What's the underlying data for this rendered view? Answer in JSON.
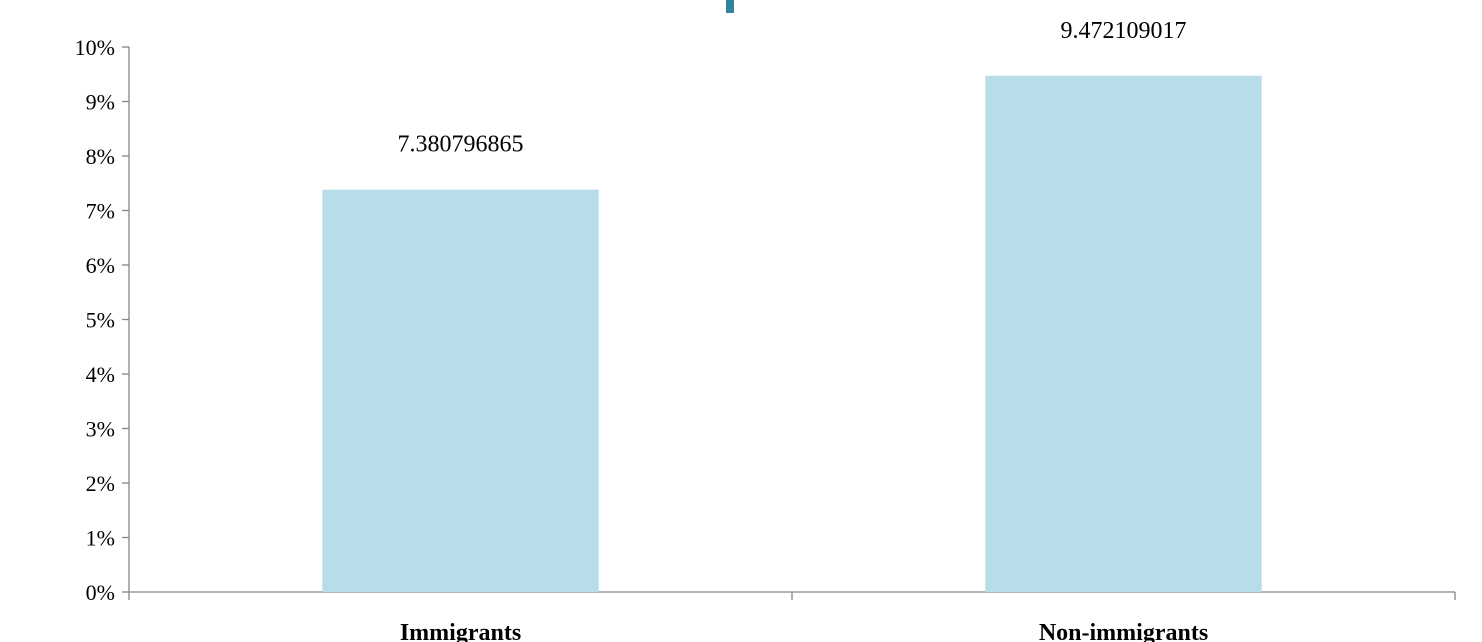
{
  "chart_data": {
    "type": "bar",
    "title": "",
    "xlabel": "",
    "ylabel": "",
    "categories": [
      "Immigrants",
      "Non-immigrants"
    ],
    "values": [
      7.380796865,
      9.472109017
    ],
    "data_labels": [
      "7.380796865",
      "9.472109017"
    ],
    "ylim": [
      0,
      10
    ],
    "yticks": [
      "0%",
      "1%",
      "2%",
      "3%",
      "4%",
      "5%",
      "6%",
      "7%",
      "8%",
      "9%",
      "10%"
    ],
    "grid": false,
    "legend": "none",
    "bar_color": "#b7dde8",
    "axis_color": "#868686",
    "partial_glyph_color": "#31849b"
  }
}
